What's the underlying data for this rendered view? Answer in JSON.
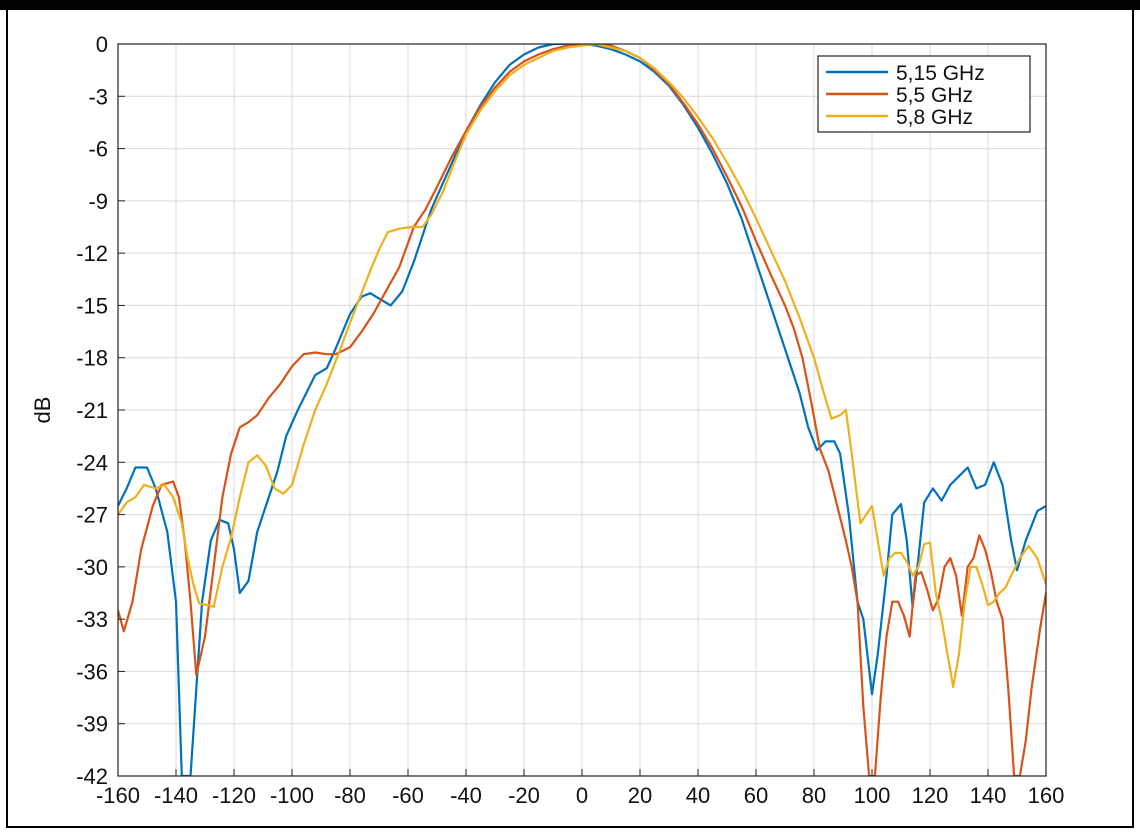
{
  "chart_data": {
    "type": "line",
    "title": "",
    "xlabel": "",
    "ylabel": "dB",
    "xlim": [
      -160,
      160
    ],
    "ylim": [
      -42,
      0
    ],
    "xticks": [
      -160,
      -140,
      -120,
      -100,
      -80,
      -60,
      -40,
      -20,
      0,
      20,
      40,
      60,
      80,
      100,
      120,
      140,
      160
    ],
    "yticks": [
      0,
      -3,
      -6,
      -9,
      -12,
      -15,
      -18,
      -21,
      -24,
      -27,
      -30,
      -33,
      -36,
      -39,
      -42
    ],
    "grid": true,
    "legend_position": "top-right",
    "series": [
      {
        "name": "5,15 GHz",
        "color": "#0072bd",
        "points": [
          [
            -160,
            -26.5
          ],
          [
            -157,
            -25.5
          ],
          [
            -154,
            -24.3
          ],
          [
            -150,
            -24.3
          ],
          [
            -147,
            -25.5
          ],
          [
            -143,
            -28.0
          ],
          [
            -140,
            -32.0
          ],
          [
            -138,
            -42.0
          ],
          [
            -135,
            -42.0
          ],
          [
            -133,
            -37.0
          ],
          [
            -131,
            -32.0
          ],
          [
            -128,
            -28.5
          ],
          [
            -125,
            -27.3
          ],
          [
            -122,
            -27.5
          ],
          [
            -120,
            -29.0
          ],
          [
            -118,
            -31.5
          ],
          [
            -115,
            -30.8
          ],
          [
            -112,
            -28.0
          ],
          [
            -108,
            -26.0
          ],
          [
            -105,
            -24.5
          ],
          [
            -102,
            -22.5
          ],
          [
            -98,
            -21.0
          ],
          [
            -95,
            -20.0
          ],
          [
            -92,
            -19.0
          ],
          [
            -88,
            -18.6
          ],
          [
            -85,
            -17.5
          ],
          [
            -80,
            -15.5
          ],
          [
            -76,
            -14.5
          ],
          [
            -73,
            -14.3
          ],
          [
            -70,
            -14.6
          ],
          [
            -66,
            -15.0
          ],
          [
            -62,
            -14.2
          ],
          [
            -58,
            -12.5
          ],
          [
            -55,
            -11.0
          ],
          [
            -52,
            -9.5
          ],
          [
            -48,
            -8.0
          ],
          [
            -44,
            -6.5
          ],
          [
            -40,
            -5.0
          ],
          [
            -35,
            -3.5
          ],
          [
            -30,
            -2.2
          ],
          [
            -25,
            -1.2
          ],
          [
            -20,
            -0.6
          ],
          [
            -15,
            -0.2
          ],
          [
            -10,
            0.0
          ],
          [
            -5,
            0.0
          ],
          [
            0,
            0.0
          ],
          [
            5,
            -0.1
          ],
          [
            10,
            -0.3
          ],
          [
            15,
            -0.6
          ],
          [
            20,
            -1.0
          ],
          [
            25,
            -1.6
          ],
          [
            30,
            -2.4
          ],
          [
            35,
            -3.5
          ],
          [
            40,
            -4.8
          ],
          [
            45,
            -6.3
          ],
          [
            50,
            -8.0
          ],
          [
            55,
            -10.0
          ],
          [
            60,
            -12.5
          ],
          [
            65,
            -15.0
          ],
          [
            70,
            -17.5
          ],
          [
            75,
            -20.0
          ],
          [
            78,
            -22.0
          ],
          [
            81,
            -23.3
          ],
          [
            84,
            -22.8
          ],
          [
            87,
            -22.8
          ],
          [
            89,
            -23.5
          ],
          [
            92,
            -27.0
          ],
          [
            95,
            -32.0
          ],
          [
            97,
            -33.0
          ],
          [
            100,
            -37.3
          ],
          [
            102,
            -35.0
          ],
          [
            105,
            -30.5
          ],
          [
            107,
            -27.0
          ],
          [
            110,
            -26.4
          ],
          [
            112,
            -28.5
          ],
          [
            114,
            -32.3
          ],
          [
            116,
            -29.5
          ],
          [
            118,
            -26.3
          ],
          [
            121,
            -25.5
          ],
          [
            124,
            -26.2
          ],
          [
            127,
            -25.3
          ],
          [
            130,
            -24.8
          ],
          [
            133,
            -24.3
          ],
          [
            136,
            -25.5
          ],
          [
            139,
            -25.3
          ],
          [
            142,
            -24.0
          ],
          [
            145,
            -25.3
          ],
          [
            148,
            -28.5
          ],
          [
            150,
            -30.2
          ],
          [
            153,
            -28.5
          ],
          [
            157,
            -26.8
          ],
          [
            160,
            -26.5
          ]
        ]
      },
      {
        "name": "5,5 GHz",
        "color": "#d95319",
        "points": [
          [
            -160,
            -32.5
          ],
          [
            -158,
            -33.7
          ],
          [
            -155,
            -32.0
          ],
          [
            -152,
            -29.0
          ],
          [
            -148,
            -26.5
          ],
          [
            -145,
            -25.3
          ],
          [
            -141,
            -25.1
          ],
          [
            -139,
            -26.0
          ],
          [
            -137,
            -28.5
          ],
          [
            -135,
            -32.0
          ],
          [
            -133,
            -36.2
          ],
          [
            -130,
            -34.0
          ],
          [
            -127,
            -30.0
          ],
          [
            -124,
            -26.0
          ],
          [
            -121,
            -23.5
          ],
          [
            -118,
            -22.0
          ],
          [
            -115,
            -21.7
          ],
          [
            -112,
            -21.3
          ],
          [
            -108,
            -20.3
          ],
          [
            -104,
            -19.5
          ],
          [
            -100,
            -18.5
          ],
          [
            -96,
            -17.8
          ],
          [
            -92,
            -17.7
          ],
          [
            -88,
            -17.8
          ],
          [
            -85,
            -17.8
          ],
          [
            -80,
            -17.4
          ],
          [
            -76,
            -16.5
          ],
          [
            -72,
            -15.5
          ],
          [
            -68,
            -14.3
          ],
          [
            -63,
            -12.8
          ],
          [
            -58,
            -10.5
          ],
          [
            -54,
            -9.5
          ],
          [
            -50,
            -8.2
          ],
          [
            -45,
            -6.5
          ],
          [
            -40,
            -5.0
          ],
          [
            -35,
            -3.6
          ],
          [
            -30,
            -2.5
          ],
          [
            -25,
            -1.6
          ],
          [
            -20,
            -1.0
          ],
          [
            -15,
            -0.6
          ],
          [
            -10,
            -0.3
          ],
          [
            -5,
            -0.1
          ],
          [
            0,
            0.0
          ],
          [
            5,
            0.0
          ],
          [
            10,
            -0.1
          ],
          [
            15,
            -0.4
          ],
          [
            20,
            -0.8
          ],
          [
            25,
            -1.5
          ],
          [
            30,
            -2.3
          ],
          [
            35,
            -3.4
          ],
          [
            40,
            -4.6
          ],
          [
            45,
            -6.0
          ],
          [
            50,
            -7.6
          ],
          [
            55,
            -9.3
          ],
          [
            60,
            -11.3
          ],
          [
            65,
            -13.2
          ],
          [
            70,
            -15.0
          ],
          [
            73,
            -16.3
          ],
          [
            76,
            -18.0
          ],
          [
            79,
            -20.5
          ],
          [
            82,
            -23.2
          ],
          [
            85,
            -24.5
          ],
          [
            88,
            -26.5
          ],
          [
            91,
            -28.5
          ],
          [
            93,
            -30.0
          ],
          [
            95,
            -32.0
          ],
          [
            97,
            -38.0
          ],
          [
            99,
            -42.0
          ],
          [
            101,
            -42.0
          ],
          [
            103,
            -37.5
          ],
          [
            105,
            -34.0
          ],
          [
            107,
            -32.0
          ],
          [
            109,
            -32.0
          ],
          [
            111,
            -32.8
          ],
          [
            113,
            -34.0
          ],
          [
            115,
            -30.5
          ],
          [
            117,
            -30.3
          ],
          [
            119,
            -31.3
          ],
          [
            121,
            -32.5
          ],
          [
            123,
            -31.8
          ],
          [
            125,
            -30.0
          ],
          [
            127,
            -29.5
          ],
          [
            129,
            -30.5
          ],
          [
            131,
            -32.8
          ],
          [
            133,
            -30.0
          ],
          [
            135,
            -29.5
          ],
          [
            137,
            -28.2
          ],
          [
            139,
            -29.0
          ],
          [
            141,
            -30.3
          ],
          [
            143,
            -32.0
          ],
          [
            145,
            -33.0
          ],
          [
            147,
            -37.0
          ],
          [
            149,
            -42.0
          ],
          [
            151,
            -42.0
          ],
          [
            153,
            -40.0
          ],
          [
            155,
            -37.0
          ],
          [
            158,
            -33.5
          ],
          [
            160,
            -31.5
          ]
        ]
      },
      {
        "name": "5,8 GHz",
        "color": "#edb120",
        "points": [
          [
            -160,
            -27.0
          ],
          [
            -157,
            -26.3
          ],
          [
            -154,
            -26.0
          ],
          [
            -151,
            -25.3
          ],
          [
            -147,
            -25.5
          ],
          [
            -144,
            -25.3
          ],
          [
            -141,
            -26.0
          ],
          [
            -138,
            -27.5
          ],
          [
            -136,
            -29.5
          ],
          [
            -134,
            -31.0
          ],
          [
            -132,
            -32.1
          ],
          [
            -129,
            -32.2
          ],
          [
            -127,
            -32.3
          ],
          [
            -124,
            -30.0
          ],
          [
            -121,
            -28.3
          ],
          [
            -118,
            -26.0
          ],
          [
            -115,
            -24.0
          ],
          [
            -112,
            -23.6
          ],
          [
            -109,
            -24.2
          ],
          [
            -106,
            -25.5
          ],
          [
            -103,
            -25.8
          ],
          [
            -100,
            -25.3
          ],
          [
            -96,
            -23.0
          ],
          [
            -92,
            -21.0
          ],
          [
            -88,
            -19.5
          ],
          [
            -84,
            -17.8
          ],
          [
            -80,
            -16.0
          ],
          [
            -76,
            -14.3
          ],
          [
            -73,
            -13.0
          ],
          [
            -70,
            -11.8
          ],
          [
            -67,
            -10.8
          ],
          [
            -63,
            -10.6
          ],
          [
            -59,
            -10.5
          ],
          [
            -55,
            -10.5
          ],
          [
            -52,
            -9.8
          ],
          [
            -48,
            -8.5
          ],
          [
            -44,
            -6.8
          ],
          [
            -40,
            -5.2
          ],
          [
            -35,
            -3.8
          ],
          [
            -30,
            -2.7
          ],
          [
            -25,
            -1.8
          ],
          [
            -20,
            -1.2
          ],
          [
            -15,
            -0.8
          ],
          [
            -10,
            -0.4
          ],
          [
            -5,
            -0.2
          ],
          [
            0,
            -0.1
          ],
          [
            5,
            0.0
          ],
          [
            10,
            -0.2
          ],
          [
            15,
            -0.4
          ],
          [
            20,
            -0.8
          ],
          [
            25,
            -1.4
          ],
          [
            30,
            -2.2
          ],
          [
            35,
            -3.1
          ],
          [
            40,
            -4.2
          ],
          [
            45,
            -5.4
          ],
          [
            50,
            -6.8
          ],
          [
            55,
            -8.3
          ],
          [
            60,
            -10.0
          ],
          [
            65,
            -11.8
          ],
          [
            70,
            -13.6
          ],
          [
            75,
            -15.7
          ],
          [
            80,
            -18.0
          ],
          [
            83,
            -19.8
          ],
          [
            86,
            -21.5
          ],
          [
            89,
            -21.3
          ],
          [
            91,
            -21.0
          ],
          [
            93,
            -23.5
          ],
          [
            96,
            -27.5
          ],
          [
            98,
            -27.0
          ],
          [
            100,
            -26.5
          ],
          [
            102,
            -28.5
          ],
          [
            104,
            -30.5
          ],
          [
            106,
            -29.5
          ],
          [
            108,
            -29.2
          ],
          [
            110,
            -29.2
          ],
          [
            112,
            -29.7
          ],
          [
            114,
            -30.5
          ],
          [
            116,
            -30.0
          ],
          [
            118,
            -28.7
          ],
          [
            120,
            -28.6
          ],
          [
            122,
            -31.5
          ],
          [
            124,
            -33.0
          ],
          [
            126,
            -35.0
          ],
          [
            128,
            -36.9
          ],
          [
            130,
            -35.0
          ],
          [
            132,
            -32.0
          ],
          [
            134,
            -30.0
          ],
          [
            136,
            -30.0
          ],
          [
            138,
            -31.0
          ],
          [
            140,
            -32.2
          ],
          [
            142,
            -32.0
          ],
          [
            144,
            -31.5
          ],
          [
            146,
            -31.2
          ],
          [
            148,
            -30.5
          ],
          [
            151,
            -29.5
          ],
          [
            154,
            -28.8
          ],
          [
            157,
            -29.5
          ],
          [
            160,
            -31.0
          ]
        ]
      }
    ]
  }
}
